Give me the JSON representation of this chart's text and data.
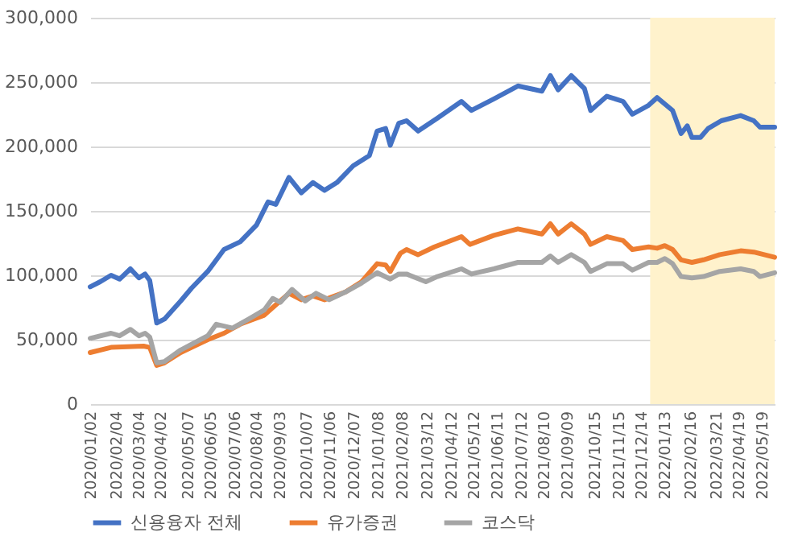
{
  "chart_data": {
    "type": "line",
    "series": [
      {
        "name": "신용융자 전체",
        "color": "#4472c4",
        "x": [
          "2020-01-02",
          "2020-01-15",
          "2020-01-29",
          "2020-02-09",
          "2020-02-23",
          "2020-03-05",
          "2020-03-13",
          "2020-03-19",
          "2020-03-28",
          "2020-04-07",
          "2020-04-28",
          "2020-05-12",
          "2020-06-02",
          "2020-06-23",
          "2020-07-14",
          "2020-08-04",
          "2020-08-19",
          "2020-08-29",
          "2020-09-15",
          "2020-10-01",
          "2020-10-16",
          "2020-10-31",
          "2020-11-16",
          "2020-12-07",
          "2020-12-28",
          "2021-01-07",
          "2021-01-18",
          "2021-01-24",
          "2021-02-04",
          "2021-02-14",
          "2021-03-01",
          "2021-03-26",
          "2021-04-26",
          "2021-05-09",
          "2021-06-07",
          "2021-07-08",
          "2021-08-08",
          "2021-08-19",
          "2021-08-29",
          "2021-09-15",
          "2021-10-02",
          "2021-10-10",
          "2021-10-31",
          "2021-11-21",
          "2021-12-03",
          "2021-12-24",
          "2022-01-04",
          "2022-01-24",
          "2022-02-04",
          "2022-02-12",
          "2022-02-18",
          "2022-03-01",
          "2022-03-11",
          "2022-03-28",
          "2022-04-22",
          "2022-05-09",
          "2022-05-17",
          "2022-06-05"
        ],
        "values": [
          91000,
          95000,
          100000,
          97000,
          105000,
          98000,
          101000,
          96000,
          63000,
          66000,
          80000,
          90000,
          103000,
          120000,
          126000,
          139000,
          157000,
          155000,
          176000,
          164000,
          172000,
          166000,
          172000,
          185000,
          193000,
          212000,
          214000,
          201000,
          218000,
          220000,
          212000,
          222000,
          235000,
          228000,
          237000,
          247000,
          243000,
          255000,
          244000,
          255000,
          245000,
          228000,
          239000,
          235000,
          225000,
          232000,
          238000,
          228000,
          210000,
          216000,
          207000,
          207000,
          214000,
          220000,
          224000,
          220000,
          215000,
          215000
        ]
      },
      {
        "name": "유가증권",
        "color": "#ed7d31",
        "x": [
          "2020-01-02",
          "2020-01-29",
          "2020-03-11",
          "2020-03-19",
          "2020-03-28",
          "2020-04-07",
          "2020-04-28",
          "2020-06-02",
          "2020-06-23",
          "2020-07-14",
          "2020-08-14",
          "2020-08-29",
          "2020-09-15",
          "2020-10-01",
          "2020-10-16",
          "2020-10-31",
          "2020-11-27",
          "2020-12-18",
          "2021-01-07",
          "2021-01-18",
          "2021-01-24",
          "2021-02-06",
          "2021-02-14",
          "2021-03-01",
          "2021-03-22",
          "2021-04-26",
          "2021-05-07",
          "2021-06-07",
          "2021-07-08",
          "2021-08-08",
          "2021-08-19",
          "2021-08-29",
          "2021-09-15",
          "2021-10-02",
          "2021-10-10",
          "2021-10-31",
          "2021-11-21",
          "2021-12-03",
          "2021-12-24",
          "2022-01-04",
          "2022-01-14",
          "2022-01-24",
          "2022-02-04",
          "2022-02-18",
          "2022-03-05",
          "2022-03-26",
          "2022-04-22",
          "2022-05-09",
          "2022-06-05"
        ],
        "values": [
          40000,
          44000,
          45000,
          44000,
          30000,
          32000,
          40000,
          50000,
          55000,
          62000,
          69000,
          77000,
          86000,
          81000,
          84000,
          81000,
          87000,
          95000,
          109000,
          108000,
          103000,
          117000,
          120000,
          116000,
          122000,
          130000,
          124000,
          131000,
          136000,
          132000,
          140000,
          132000,
          140000,
          132000,
          124000,
          130000,
          127000,
          120000,
          122000,
          121000,
          123000,
          120000,
          112000,
          110000,
          112000,
          116000,
          119000,
          118000,
          114000
        ]
      },
      {
        "name": "코스닥",
        "color": "#a5a5a5",
        "x": [
          "2020-01-02",
          "2020-01-29",
          "2020-02-09",
          "2020-02-23",
          "2020-03-05",
          "2020-03-13",
          "2020-03-19",
          "2020-03-28",
          "2020-04-07",
          "2020-04-28",
          "2020-06-02",
          "2020-06-13",
          "2020-07-04",
          "2020-07-25",
          "2020-08-14",
          "2020-08-25",
          "2020-09-04",
          "2020-09-19",
          "2020-10-06",
          "2020-10-20",
          "2020-11-06",
          "2020-11-27",
          "2020-12-18",
          "2021-01-07",
          "2021-01-24",
          "2021-02-04",
          "2021-02-14",
          "2021-03-11",
          "2021-03-26",
          "2021-04-26",
          "2021-05-09",
          "2021-06-07",
          "2021-07-08",
          "2021-08-08",
          "2021-08-19",
          "2021-08-29",
          "2021-09-15",
          "2021-10-02",
          "2021-10-10",
          "2021-10-31",
          "2021-11-21",
          "2021-12-03",
          "2021-12-24",
          "2022-01-04",
          "2022-01-14",
          "2022-01-24",
          "2022-02-04",
          "2022-02-18",
          "2022-03-05",
          "2022-03-26",
          "2022-04-22",
          "2022-05-09",
          "2022-05-17",
          "2022-06-05"
        ],
        "values": [
          51000,
          55000,
          53000,
          58000,
          53000,
          55000,
          52000,
          32000,
          33000,
          42000,
          53000,
          62000,
          59000,
          66000,
          73000,
          82000,
          79000,
          89000,
          80000,
          86000,
          81000,
          87000,
          94000,
          102000,
          97000,
          101000,
          101000,
          95000,
          99000,
          105000,
          101000,
          105000,
          110000,
          110000,
          115000,
          110000,
          116000,
          110000,
          103000,
          109000,
          109000,
          104000,
          110000,
          110000,
          113000,
          109000,
          99000,
          98000,
          99000,
          103000,
          105000,
          103000,
          99000,
          102000
        ]
      }
    ],
    "xlim": [
      "2020-01-02",
      "2022-06-05"
    ],
    "xticks": [
      {
        "value": "2020-01-02",
        "label": "2020/01/02"
      },
      {
        "value": "2020-02-04",
        "label": "2020/02/04"
      },
      {
        "value": "2020-03-04",
        "label": "2020/03/04"
      },
      {
        "value": "2020-04-02",
        "label": "2020/04/02"
      },
      {
        "value": "2020-05-07",
        "label": "2020/05/07"
      },
      {
        "value": "2020-06-05",
        "label": "2020/06/05"
      },
      {
        "value": "2020-07-06",
        "label": "2020/07/06"
      },
      {
        "value": "2020-08-04",
        "label": "2020/08/04"
      },
      {
        "value": "2020-09-03",
        "label": "2020/09/03"
      },
      {
        "value": "2020-10-07",
        "label": "2020/10/07"
      },
      {
        "value": "2020-11-06",
        "label": "2020/11/06"
      },
      {
        "value": "2020-12-07",
        "label": "2020/12/07"
      },
      {
        "value": "2021-01-08",
        "label": "2021/01/08"
      },
      {
        "value": "2021-02-08",
        "label": "2021/02/08"
      },
      {
        "value": "2021-03-12",
        "label": "2021/03/12"
      },
      {
        "value": "2021-04-12",
        "label": "2021/04/12"
      },
      {
        "value": "2021-05-12",
        "label": "2021/05/12"
      },
      {
        "value": "2021-06-11",
        "label": "2021/06/11"
      },
      {
        "value": "2021-07-12",
        "label": "2021/07/12"
      },
      {
        "value": "2021-08-10",
        "label": "2021/08/10"
      },
      {
        "value": "2021-09-09",
        "label": "2021/09/09"
      },
      {
        "value": "2021-10-15",
        "label": "2021/10/15"
      },
      {
        "value": "2021-11-15",
        "label": "2021/11/15"
      },
      {
        "value": "2021-12-14",
        "label": "2021/12/14"
      },
      {
        "value": "2022-01-13",
        "label": "2022/01/13"
      },
      {
        "value": "2022-02-16",
        "label": "2022/02/16"
      },
      {
        "value": "2022-03-21",
        "label": "2022/03/21"
      },
      {
        "value": "2022-04-19",
        "label": "2022/04/19"
      },
      {
        "value": "2022-05-19",
        "label": "2022/05/19"
      }
    ],
    "ylim": [
      0,
      300000
    ],
    "yticks": [
      {
        "value": 0,
        "label": "0"
      },
      {
        "value": 50000,
        "label": "50,000"
      },
      {
        "value": 100000,
        "label": "100,000"
      },
      {
        "value": 150000,
        "label": "150,000"
      },
      {
        "value": 200000,
        "label": "200,000"
      },
      {
        "value": 250000,
        "label": "250,000"
      },
      {
        "value": 300000,
        "label": "300,000"
      }
    ],
    "bands": [
      {
        "axis": "x",
        "from": "2021-12-26",
        "to": "2022-06-05",
        "color": "#fff2cc"
      }
    ],
    "grid": "y",
    "legend": "bottom",
    "marker": "none",
    "line_style": "solid"
  }
}
